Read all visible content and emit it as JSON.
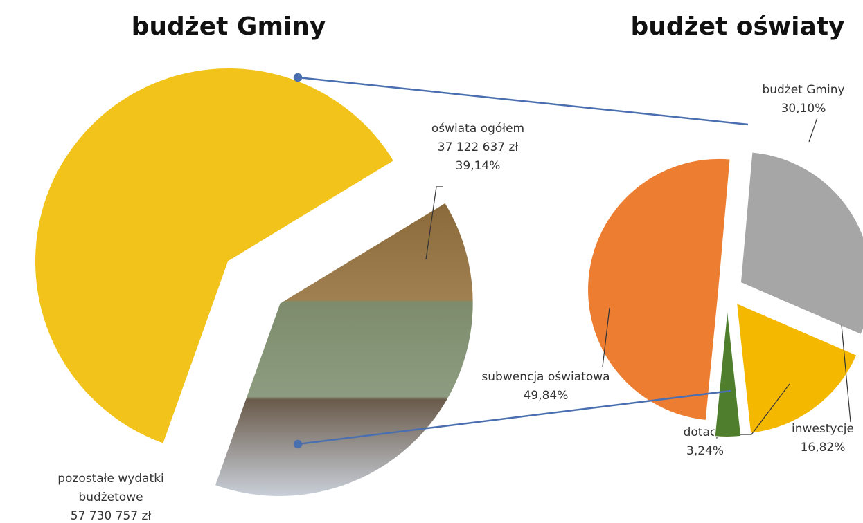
{
  "chart_data": [
    {
      "type": "pie",
      "title": "budżet Gminy",
      "categories": [
        "pozostałe wydatki budżetowe",
        "oświata ogółem"
      ],
      "values": [
        57730757,
        37122637
      ],
      "value_labels": [
        "57 730 757 zł",
        "37 122 637 zł"
      ],
      "share_labels": {
        "1": "39,14%"
      },
      "colors": [
        "#f2c31a",
        "#7d8c6c"
      ]
    },
    {
      "type": "pie",
      "title": "budżet oświaty",
      "categories": [
        "budżet Gminy",
        "inwestycje",
        "dotacje",
        "subwencja oświatowa"
      ],
      "values": [
        30.1,
        16.82,
        3.24,
        49.84
      ],
      "value_labels": [
        "30,10%",
        "16,82%",
        "3,24%",
        "49,84%"
      ],
      "colors": [
        "#a6a6a6",
        "#f5b800",
        "#4f7f2c",
        "#ed7d31"
      ]
    }
  ]
}
